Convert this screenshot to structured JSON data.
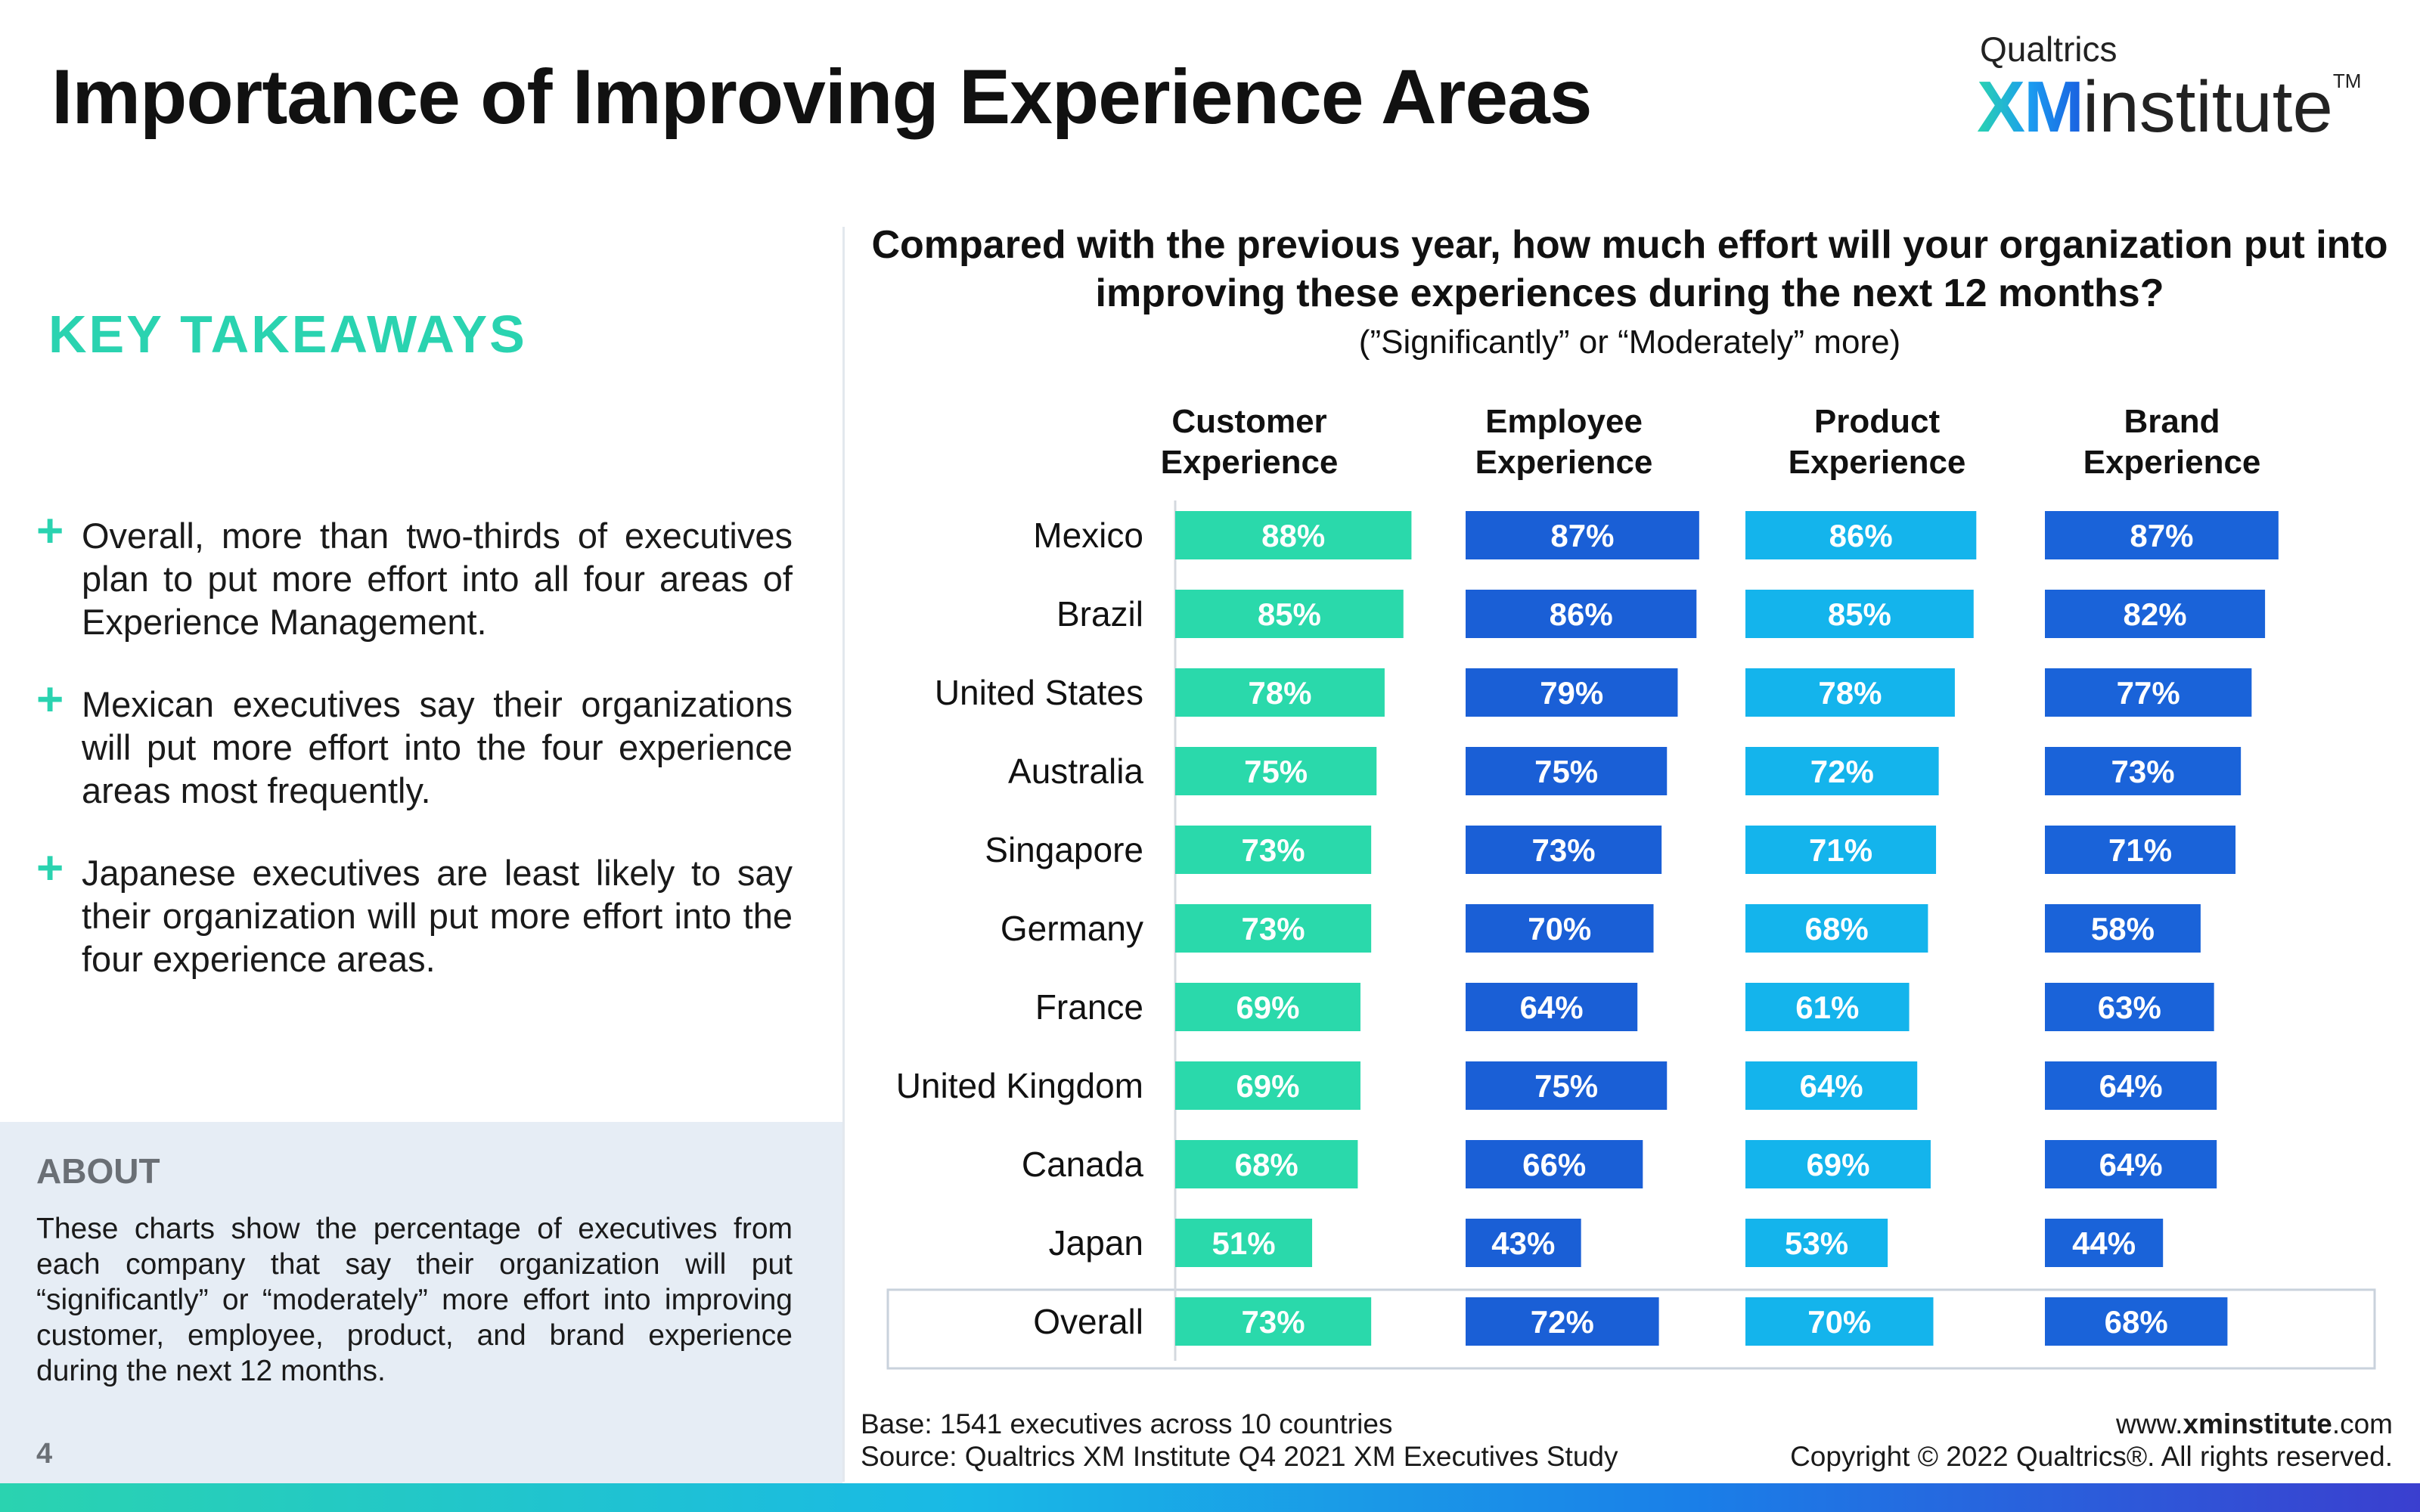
{
  "page": {
    "title": "Importance of Improving Experience Areas",
    "logo": {
      "brand_small": "Qualtrics",
      "brand_xm": "XM",
      "brand_rest": "institute",
      "trademark": "TM"
    },
    "key_takeaways_label": "KEY TAKEAWAYS",
    "takeaways": [
      "Overall, more than two-thirds of executives plan to put more effort into all four areas of Experience Management.",
      "Mexican executives say their organizations will put more effort into the four experience areas most frequently.",
      "Japanese executives are least likely to say their organization will put more effort into the four experience areas."
    ],
    "plus_glyph": "+",
    "about": {
      "label": "ABOUT",
      "text": "These charts show the percentage of executives from each company that say their organization will put “significantly” or “moderately” more effort into improving customer, employee, product, and brand experience during the next 12 months."
    },
    "page_number": "4",
    "footer": {
      "base": "Base: 1541 executives across 10 countries",
      "source": "Source: Qualtrics XM Institute Q4 2021 XM Executives Study",
      "url_prefix": "www.",
      "url_bold": "xminstitute",
      "url_suffix": ".com",
      "copyright": "Copyright © 2022 Qualtrics®. All rights reserved."
    }
  },
  "chart_data": {
    "type": "bar",
    "orientation": "horizontal",
    "title": "Compared with the previous year, how much effort will your organization put into improving these experiences during the next 12 months?",
    "subtitle": "(”Significantly” or “Moderately” more)",
    "categories": [
      "Mexico",
      "Brazil",
      "United States",
      "Australia",
      "Singapore",
      "Germany",
      "France",
      "United Kingdom",
      "Canada",
      "Japan",
      "Overall"
    ],
    "highlighted_category": "Overall",
    "value_suffix": "%",
    "xlim": [
      0,
      100
    ],
    "series": [
      {
        "name": "Customer Experience",
        "header": [
          "Customer",
          "Experience"
        ],
        "color": "#2ad9ab",
        "values": [
          88,
          85,
          78,
          75,
          73,
          73,
          69,
          69,
          68,
          51,
          73
        ]
      },
      {
        "name": "Employee Experience",
        "header": [
          "Employee",
          "Experience"
        ],
        "color": "#1a5fd6",
        "values": [
          87,
          86,
          79,
          75,
          73,
          70,
          64,
          75,
          66,
          43,
          72
        ]
      },
      {
        "name": "Product Experience",
        "header": [
          "Product",
          "Experience"
        ],
        "color": "#14b4ec",
        "values": [
          86,
          85,
          78,
          72,
          71,
          68,
          61,
          64,
          69,
          53,
          70
        ]
      },
      {
        "name": "Brand Experience",
        "header": [
          "Brand",
          "Experience"
        ],
        "color": "#1a63d9",
        "values": [
          87,
          82,
          77,
          73,
          71,
          58,
          63,
          64,
          64,
          44,
          68
        ]
      }
    ]
  }
}
